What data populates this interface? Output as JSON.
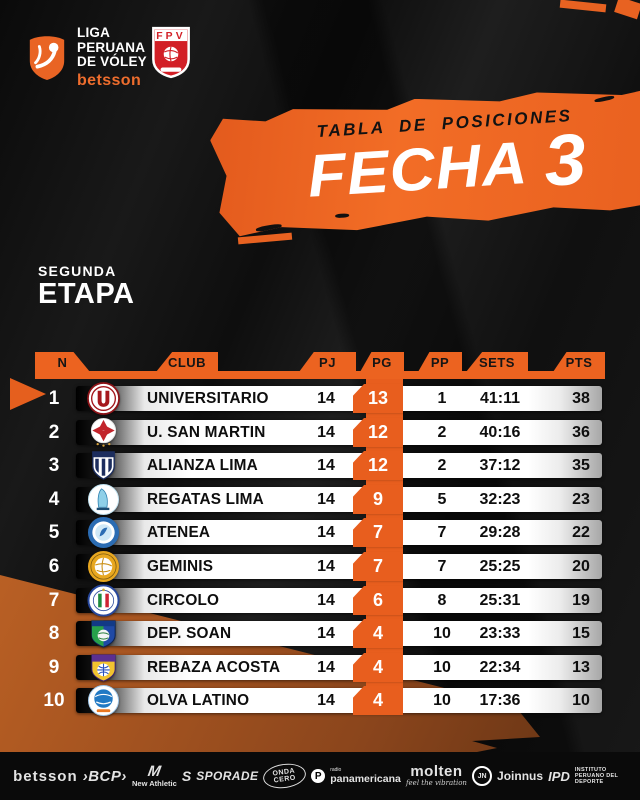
{
  "brand": {
    "league": {
      "lines": [
        "LIGA",
        "PERUANA",
        "DE VÓLEY"
      ],
      "sponsor": "betsson"
    },
    "federation": {
      "letters": "FPV"
    }
  },
  "title": {
    "kicker": "TABLA DE POSICIONES",
    "word": "FECHA",
    "number": "3"
  },
  "stage": {
    "top": "SEGUNDA",
    "bottom": "ETAPA"
  },
  "chart_data": {
    "type": "table",
    "title": "TABLA DE POSICIONES - FECHA 3 - SEGUNDA ETAPA",
    "columns": [
      "N",
      "CLUB",
      "PJ",
      "PG",
      "PP",
      "SETS",
      "PTS"
    ],
    "rows": [
      [
        "1",
        "UNIVERSITARIO",
        "14",
        "13",
        "1",
        "41:11",
        "38"
      ],
      [
        "2",
        "U. SAN MARTIN",
        "14",
        "12",
        "2",
        "40:16",
        "36"
      ],
      [
        "3",
        "ALIANZA LIMA",
        "14",
        "12",
        "2",
        "37:12",
        "35"
      ],
      [
        "4",
        "REGATAS LIMA",
        "14",
        "9",
        "5",
        "32:23",
        "23"
      ],
      [
        "5",
        "ATENEA",
        "14",
        "7",
        "7",
        "29:28",
        "22"
      ],
      [
        "6",
        "GEMINIS",
        "14",
        "7",
        "7",
        "25:25",
        "20"
      ],
      [
        "7",
        "CIRCOLO",
        "14",
        "6",
        "8",
        "25:31",
        "19"
      ],
      [
        "8",
        "DEP. SOAN",
        "14",
        "4",
        "10",
        "23:33",
        "15"
      ],
      [
        "9",
        "REBAZA ACOSTA",
        "14",
        "4",
        "10",
        "22:34",
        "13"
      ],
      [
        "10",
        "OLVA LATINO",
        "14",
        "4",
        "10",
        "17:36",
        "10"
      ]
    ]
  },
  "logo_marks": [
    "universitario",
    "san-martin",
    "alianza-lima",
    "regatas-lima",
    "atenea",
    "geminis",
    "circolo",
    "dep-soan",
    "rebaza-acosta",
    "olva-latino"
  ],
  "sponsors": {
    "items": [
      {
        "id": "betsson",
        "label": "betsson"
      },
      {
        "id": "bcp",
        "label": "›BCP›"
      },
      {
        "id": "new-athletic",
        "mark": "M",
        "label": "New Athletic"
      },
      {
        "id": "sporade",
        "mark": "S",
        "label": "SPORADE"
      },
      {
        "id": "onda-cero",
        "lines": [
          "ONDA",
          "CERO"
        ]
      },
      {
        "id": "panamericana",
        "mark": "P",
        "sub": "radio",
        "label": "panamericana"
      },
      {
        "id": "molten",
        "label": "molten",
        "tagline": "feel the vibration"
      },
      {
        "id": "joinnus",
        "mark": "JN",
        "label": "Joinnus"
      },
      {
        "id": "ipd",
        "label": "IPD",
        "sub": "INSTITUTO PERUANO DEL DEPORTE"
      }
    ]
  },
  "colors": {
    "accent_orange": "#ec6320",
    "brush_muted_orange": "#a85322",
    "row_highlight": "#ffffff",
    "fpv_red": "#d21f26",
    "background": "#141414"
  }
}
